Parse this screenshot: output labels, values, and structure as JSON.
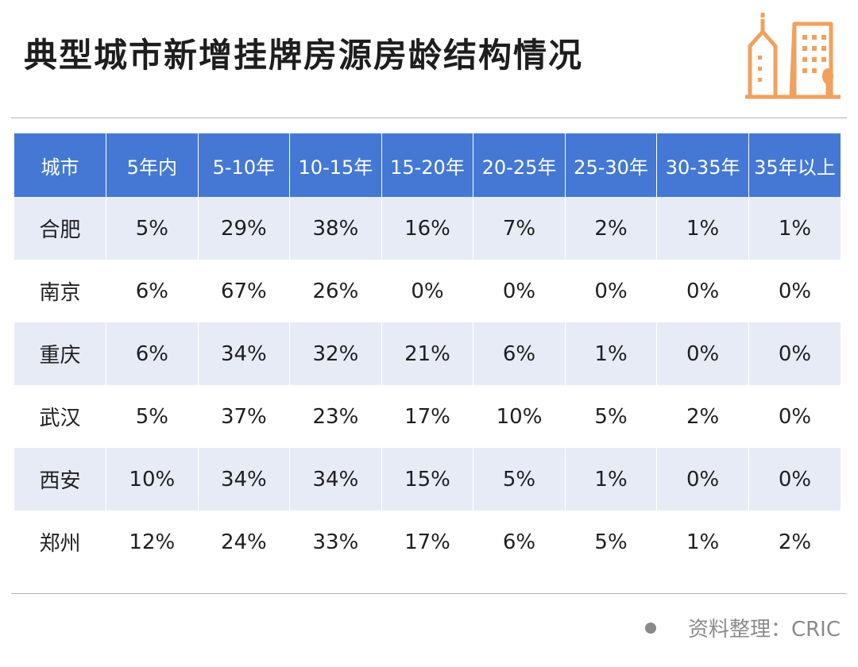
{
  "title": "典型城市新增挂牌房源房龄结构情况",
  "source": "资料整理：CRIC",
  "colors": {
    "header_bg": "#4478d4",
    "stripe_bg": "#e7ebf6",
    "logo_orange": "#f0a15e"
  },
  "logo": {
    "icon": "city-buildings-icon"
  },
  "chart_data": {
    "type": "table",
    "columns": [
      "城市",
      "5年内",
      "5-10年",
      "10-15年",
      "15-20年",
      "20-25年",
      "25-30年",
      "30-35年",
      "35年以上"
    ],
    "rows": [
      [
        "合肥",
        "5%",
        "29%",
        "38%",
        "16%",
        "7%",
        "2%",
        "1%",
        "1%"
      ],
      [
        "南京",
        "6%",
        "67%",
        "26%",
        "0%",
        "0%",
        "0%",
        "0%",
        "0%"
      ],
      [
        "重庆",
        "6%",
        "34%",
        "32%",
        "21%",
        "6%",
        "1%",
        "0%",
        "0%"
      ],
      [
        "武汉",
        "5%",
        "37%",
        "23%",
        "17%",
        "10%",
        "5%",
        "2%",
        "0%"
      ],
      [
        "西安",
        "10%",
        "34%",
        "34%",
        "15%",
        "5%",
        "1%",
        "0%",
        "0%"
      ],
      [
        "郑州",
        "12%",
        "24%",
        "33%",
        "17%",
        "6%",
        "5%",
        "1%",
        "2%"
      ]
    ]
  }
}
